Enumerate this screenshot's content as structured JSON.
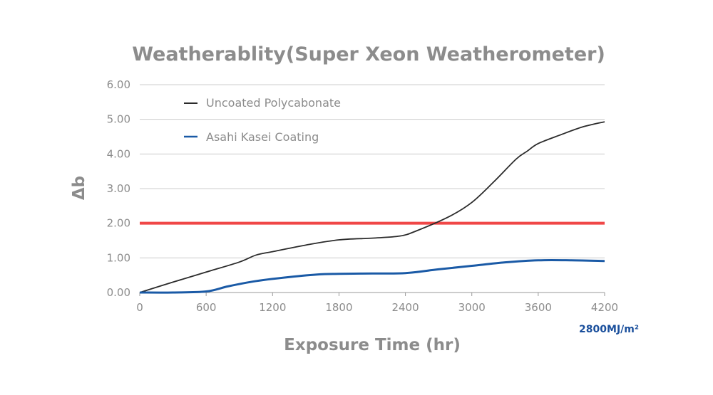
{
  "chart_data": {
    "type": "line",
    "title": "Weatherablity(Super Xeon Weatherometer)",
    "xlabel": "Exposure Time (hr)",
    "ylabel": "Δb",
    "xlim": [
      0,
      4200
    ],
    "ylim": [
      0,
      6
    ],
    "x_ticks": [
      "0",
      "600",
      "1200",
      "1800",
      "2400",
      "3000",
      "3600",
      "4200"
    ],
    "y_ticks": [
      "0.00",
      "1.00",
      "2.00",
      "3.00",
      "4.00",
      "5.00",
      "6.00"
    ],
    "grid": true,
    "legend_position": "top-left",
    "annotation": "2800MJ/m²",
    "annotation_color": "#1a4f9c",
    "series": [
      {
        "name": "Uncoated Polycabonate",
        "color": "#2b2b2b",
        "x": [
          0,
          300,
          600,
          900,
          1050,
          1200,
          1500,
          1800,
          2100,
          2350,
          2500,
          2800,
          3000,
          3200,
          3400,
          3500,
          3600,
          3800,
          4000,
          4200
        ],
        "y": [
          0,
          0.3,
          0.59,
          0.88,
          1.08,
          1.18,
          1.37,
          1.52,
          1.57,
          1.63,
          1.78,
          2.2,
          2.6,
          3.2,
          3.85,
          4.08,
          4.3,
          4.55,
          4.78,
          4.93
        ]
      },
      {
        "name": "Asahi Kasei Coating",
        "color": "#1a5aa6",
        "x": [
          0,
          300,
          600,
          800,
          1050,
          1300,
          1600,
          1800,
          2100,
          2400,
          2700,
          3000,
          3300,
          3600,
          3900,
          4200
        ],
        "y": [
          0,
          0.0,
          0.03,
          0.18,
          0.33,
          0.43,
          0.52,
          0.54,
          0.55,
          0.56,
          0.67,
          0.77,
          0.87,
          0.93,
          0.93,
          0.91
        ]
      },
      {
        "name": "",
        "color": "#f04747",
        "x": [
          0,
          4200
        ],
        "y": [
          2,
          2
        ]
      }
    ]
  }
}
